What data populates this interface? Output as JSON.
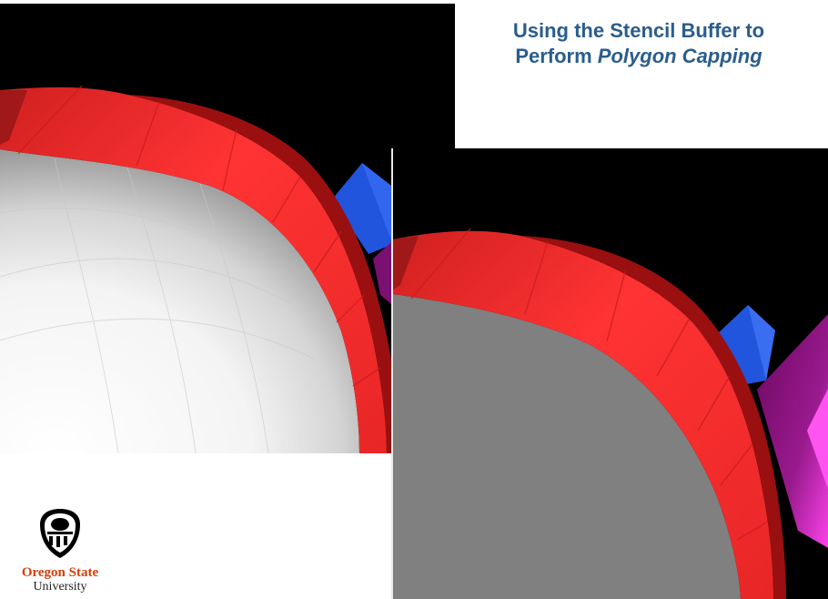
{
  "slide": {
    "title_line1": "Using the Stencil Buffer to",
    "title_line2_prefix": "Perform ",
    "title_line2_emphasis": "Polygon Capping"
  },
  "logo": {
    "line1": "Oregon State",
    "line2": "University"
  },
  "colors": {
    "title": "#2a5d8c",
    "osu_orange": "#d73f09",
    "torus_red": "#ff3333",
    "cap_gray": "#808080",
    "crystal_blue": "#2255dd",
    "crystal_magenta": "#cc22cc"
  }
}
